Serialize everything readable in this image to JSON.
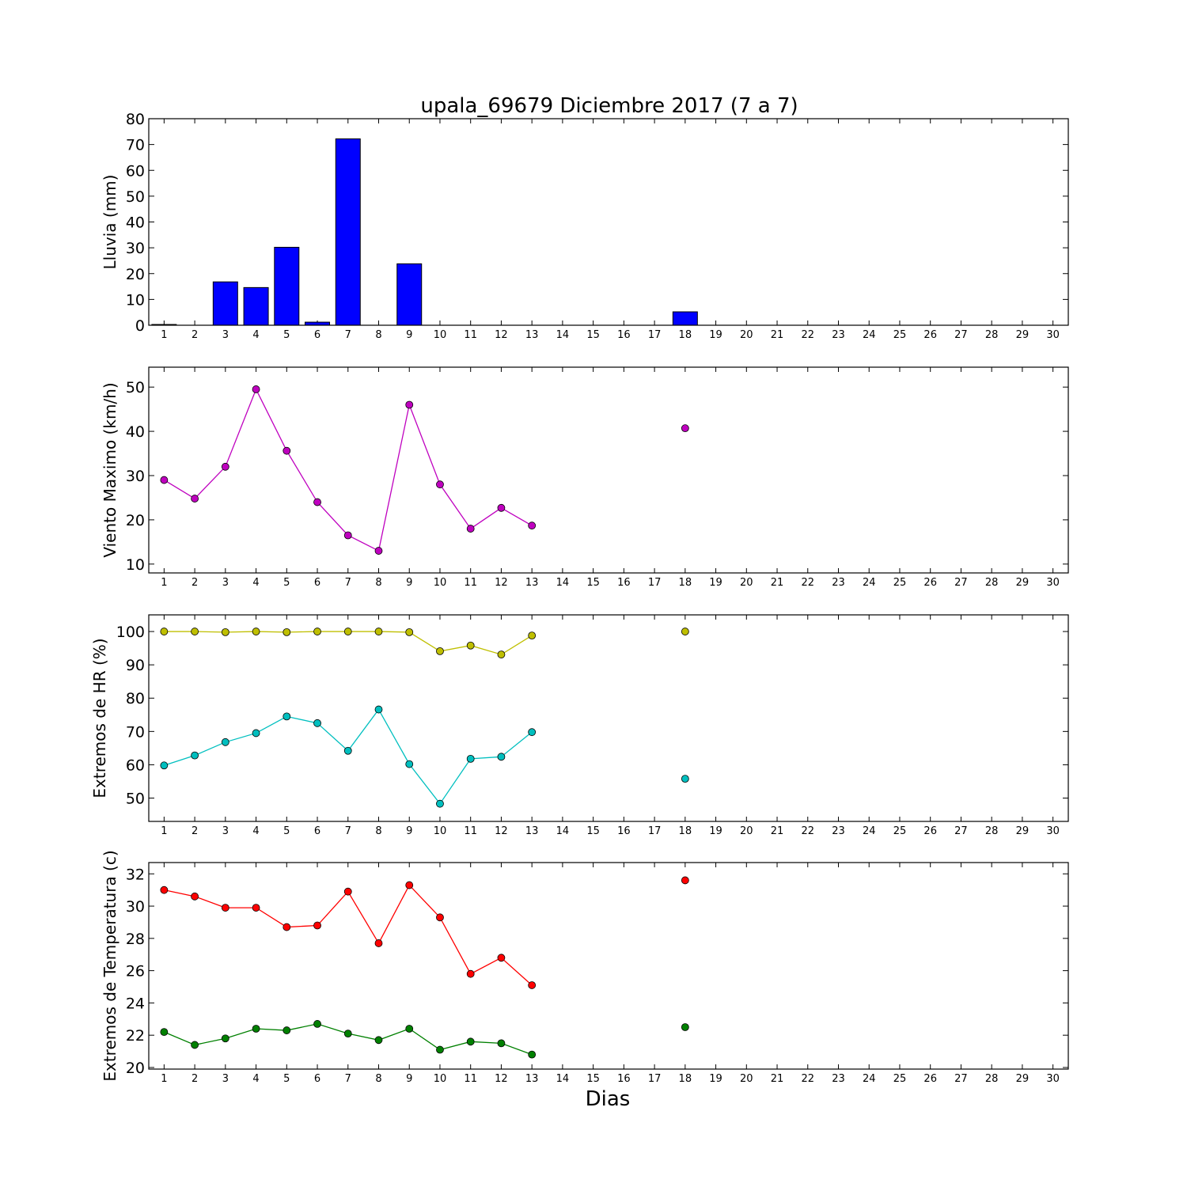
{
  "title": "upala_69679 Diciembre 2017  (7 a 7)",
  "xlabel": "Dias",
  "chart_data": [
    {
      "type": "bar",
      "ylabel": "Lluvia (mm)",
      "ylim": [
        0,
        80
      ],
      "yticks": [
        0,
        10,
        20,
        30,
        40,
        50,
        60,
        70,
        80
      ],
      "xlim": [
        0.5,
        30.5
      ],
      "xticks": [
        1,
        2,
        3,
        4,
        5,
        6,
        7,
        8,
        9,
        10,
        11,
        12,
        13,
        14,
        15,
        16,
        17,
        18,
        19,
        20,
        21,
        22,
        23,
        24,
        25,
        26,
        27,
        28,
        29,
        30
      ],
      "color": "#0000ff",
      "x": [
        1,
        2,
        3,
        4,
        5,
        6,
        7,
        8,
        9,
        10,
        11,
        12,
        13,
        18
      ],
      "values": [
        0.3,
        0,
        16.8,
        14.6,
        30.2,
        1.2,
        72.2,
        0,
        23.8,
        0,
        0,
        0,
        0,
        5.2
      ]
    },
    {
      "type": "line",
      "ylabel": "Viento Maximo (km/h)",
      "ylim": [
        8,
        54.5
      ],
      "yticks": [
        10,
        20,
        30,
        40,
        50
      ],
      "xlim": [
        0.5,
        30.5
      ],
      "xticks": [
        1,
        2,
        3,
        4,
        5,
        6,
        7,
        8,
        9,
        10,
        11,
        12,
        13,
        14,
        15,
        16,
        17,
        18,
        19,
        20,
        21,
        22,
        23,
        24,
        25,
        26,
        27,
        28,
        29,
        30
      ],
      "series": [
        {
          "color": "#bf00bf",
          "segments": [
            {
              "x": [
                1,
                2,
                3,
                4,
                5,
                6,
                7,
                8,
                9,
                10,
                11,
                12,
                13
              ],
              "y": [
                29.0,
                24.8,
                32.0,
                49.5,
                35.6,
                24.0,
                16.5,
                13.0,
                46.0,
                28.0,
                18.0,
                22.7,
                18.7
              ]
            },
            {
              "x": [
                18
              ],
              "y": [
                40.7
              ]
            }
          ]
        }
      ]
    },
    {
      "type": "line",
      "ylabel": "Extremos de HR (%)",
      "ylim": [
        43,
        105
      ],
      "yticks": [
        50,
        60,
        70,
        80,
        90,
        100
      ],
      "xlim": [
        0.5,
        30.5
      ],
      "xticks": [
        1,
        2,
        3,
        4,
        5,
        6,
        7,
        8,
        9,
        10,
        11,
        12,
        13,
        14,
        15,
        16,
        17,
        18,
        19,
        20,
        21,
        22,
        23,
        24,
        25,
        26,
        27,
        28,
        29,
        30
      ],
      "series": [
        {
          "color": "#bfbf00",
          "segments": [
            {
              "x": [
                1,
                2,
                3,
                4,
                5,
                6,
                7,
                8,
                9,
                10,
                11,
                12,
                13
              ],
              "y": [
                100,
                100,
                99.8,
                100,
                99.8,
                100,
                100,
                100,
                99.8,
                94.1,
                95.8,
                93.1,
                98.8
              ]
            },
            {
              "x": [
                18
              ],
              "y": [
                100
              ]
            }
          ]
        },
        {
          "color": "#00bfbf",
          "segments": [
            {
              "x": [
                1,
                2,
                3,
                4,
                5,
                6,
                7,
                8,
                9,
                10,
                11,
                12,
                13
              ],
              "y": [
                59.8,
                62.8,
                66.8,
                69.5,
                74.5,
                72.5,
                64.2,
                76.6,
                60.2,
                48.3,
                61.8,
                62.4,
                69.8
              ]
            },
            {
              "x": [
                18
              ],
              "y": [
                55.8
              ]
            }
          ]
        }
      ]
    },
    {
      "type": "line",
      "ylabel": "Extremos de Temperatura (c)",
      "ylim": [
        19.9,
        32.7
      ],
      "yticks": [
        20,
        22,
        24,
        26,
        28,
        30,
        32
      ],
      "xlim": [
        0.5,
        30.5
      ],
      "xticks": [
        1,
        2,
        3,
        4,
        5,
        6,
        7,
        8,
        9,
        10,
        11,
        12,
        13,
        14,
        15,
        16,
        17,
        18,
        19,
        20,
        21,
        22,
        23,
        24,
        25,
        26,
        27,
        28,
        29,
        30
      ],
      "series": [
        {
          "color": "#ff0000",
          "segments": [
            {
              "x": [
                1,
                2,
                3,
                4,
                5,
                6,
                7,
                8,
                9,
                10,
                11,
                12,
                13
              ],
              "y": [
                31.0,
                30.6,
                29.9,
                29.9,
                28.7,
                28.8,
                30.9,
                27.7,
                31.3,
                29.3,
                25.8,
                26.8,
                25.1
              ]
            },
            {
              "x": [
                18
              ],
              "y": [
                31.6
              ]
            }
          ]
        },
        {
          "color": "#008000",
          "segments": [
            {
              "x": [
                1,
                2,
                3,
                4,
                5,
                6,
                7,
                8,
                9,
                10,
                11,
                12,
                13
              ],
              "y": [
                22.2,
                21.4,
                21.8,
                22.4,
                22.3,
                22.7,
                22.1,
                21.7,
                22.4,
                21.1,
                21.6,
                21.5,
                20.8
              ]
            },
            {
              "x": [
                18
              ],
              "y": [
                22.5
              ]
            }
          ]
        }
      ]
    }
  ]
}
